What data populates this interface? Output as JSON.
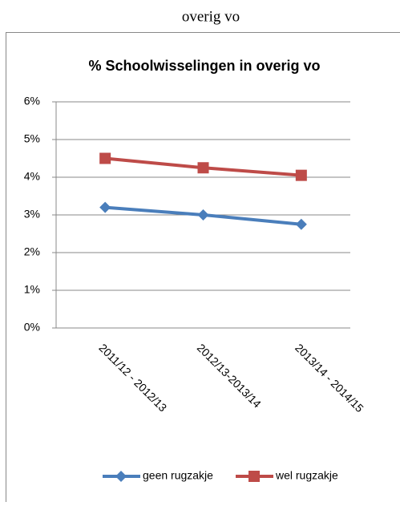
{
  "heading": "overig vo",
  "chart_data": {
    "type": "line",
    "title": "% Schoolwisselingen in overig vo",
    "categories": [
      "2011/12 - 2012/13",
      "2012/13-2013/14",
      "2013/14 - 2014/15"
    ],
    "series": [
      {
        "name": "geen rugzakje",
        "color": "#4a7ebb",
        "marker": "diamond",
        "values": [
          3.2,
          3.0,
          2.75
        ]
      },
      {
        "name": "wel rugzakje",
        "color": "#be4b48",
        "marker": "square",
        "values": [
          4.5,
          4.25,
          4.05
        ]
      }
    ],
    "ylim": [
      0,
      6
    ],
    "yticks": [
      {
        "value": 0,
        "label": "0%"
      },
      {
        "value": 1,
        "label": "1%"
      },
      {
        "value": 2,
        "label": "2%"
      },
      {
        "value": 3,
        "label": "3%"
      },
      {
        "value": 4,
        "label": "4%"
      },
      {
        "value": 5,
        "label": "5%"
      },
      {
        "value": 6,
        "label": "6%"
      }
    ],
    "grid": true,
    "legend": "bottom"
  }
}
